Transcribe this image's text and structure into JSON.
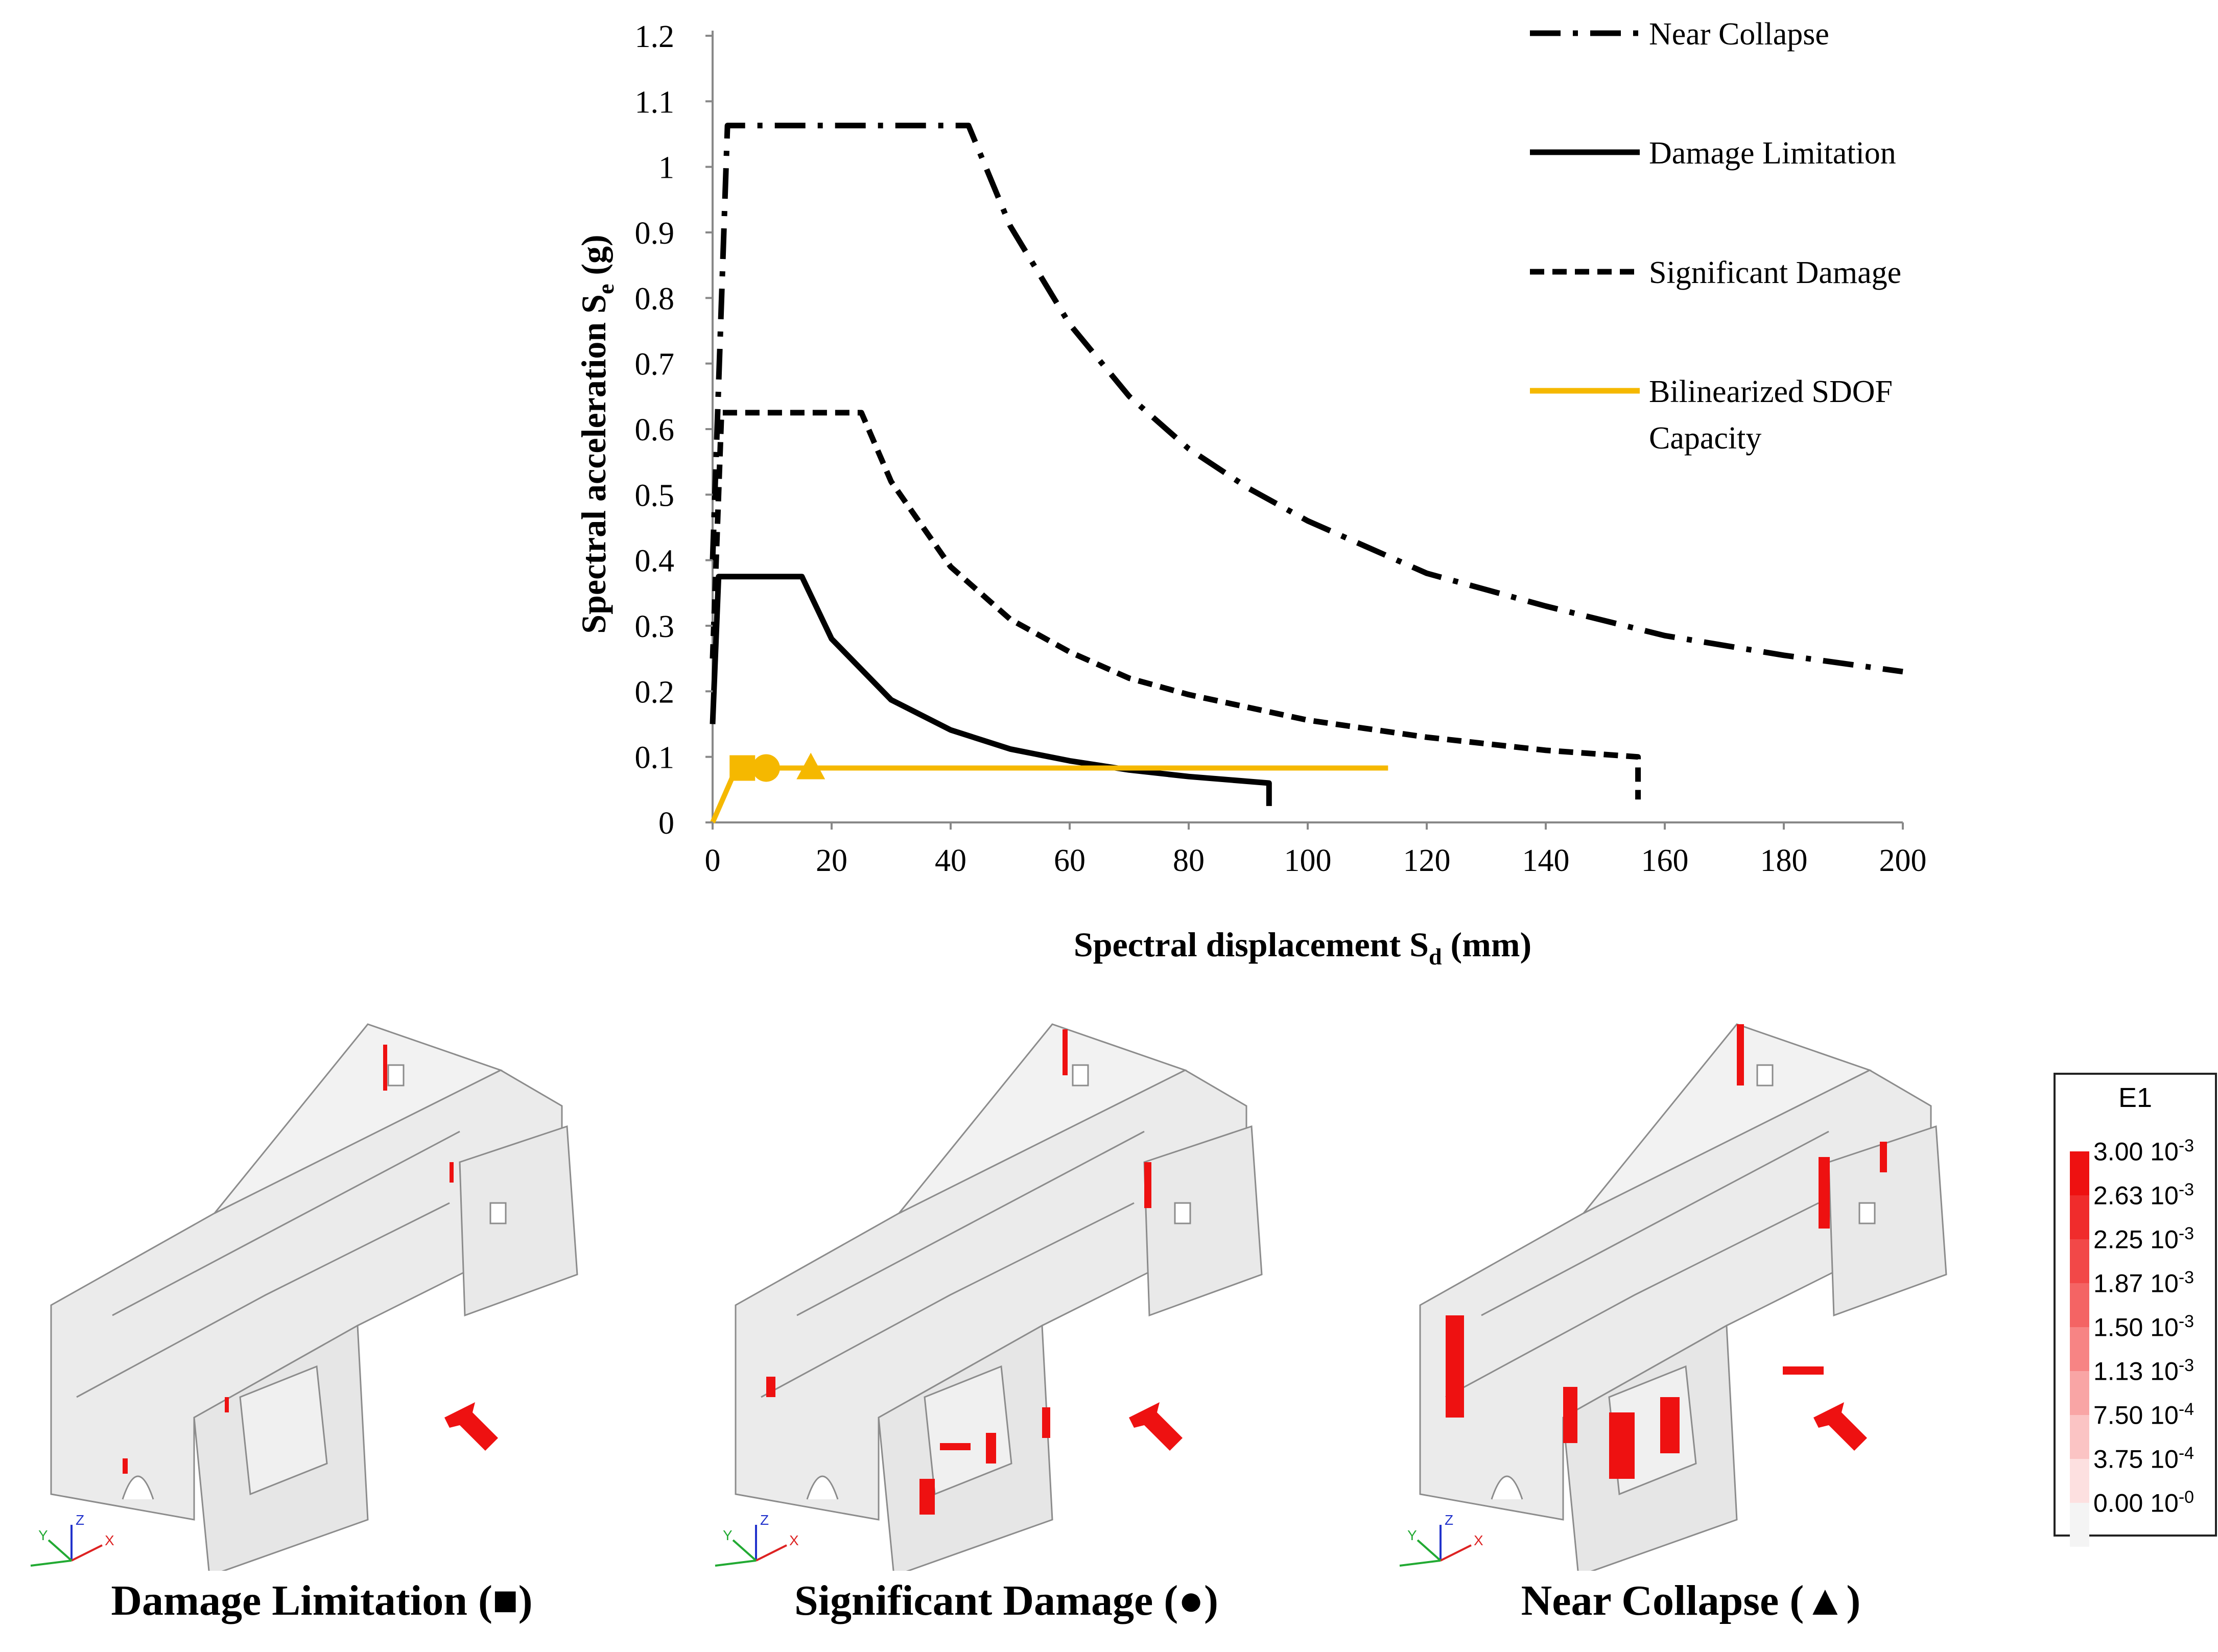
{
  "chart_data": {
    "type": "line",
    "xlabel": "Spectral displacement S",
    "xlabel_sub": "d",
    "xlabel_unit": " (mm)",
    "ylabel": "Spectral acceleration S",
    "ylabel_sub": "e",
    "ylabel_unit": " (g)",
    "xlim": [
      0,
      200
    ],
    "ylim": [
      0,
      1.2
    ],
    "x_ticks": [
      "0",
      "20",
      "40",
      "60",
      "80",
      "100",
      "120",
      "140",
      "160",
      "180",
      "200"
    ],
    "y_ticks": [
      "0",
      "0.1",
      "0.2",
      "0.3",
      "0.4",
      "0.5",
      "0.6",
      "0.7",
      "0.8",
      "0.9",
      "1",
      "1.1",
      "1.2"
    ],
    "series": [
      {
        "name": "Near Collapse",
        "style": "dashdot",
        "color": "#000000",
        "plateau": 1.063,
        "x": [
          0,
          2.5,
          43,
          50,
          60,
          70,
          80,
          90,
          100,
          120,
          140,
          160,
          180,
          200
        ],
        "y": [
          0.4,
          1.063,
          1.063,
          0.91,
          0.76,
          0.65,
          0.57,
          0.51,
          0.46,
          0.38,
          0.33,
          0.285,
          0.255,
          0.23
        ]
      },
      {
        "name": "Damage Limitation",
        "style": "solid",
        "color": "#000000",
        "plateau": 0.375,
        "x": [
          0,
          1,
          15,
          20,
          30,
          40,
          50,
          60,
          70,
          80,
          93.5,
          93.5
        ],
        "y": [
          0.15,
          0.375,
          0.375,
          0.28,
          0.187,
          0.141,
          0.112,
          0.094,
          0.08,
          0.07,
          0.06,
          0.025
        ]
      },
      {
        "name": "Significant Damage",
        "style": "dashed",
        "color": "#000000",
        "plateau": 0.625,
        "x": [
          0,
          1.5,
          25,
          30,
          40,
          50,
          60,
          70,
          80,
          100,
          120,
          140,
          155.5,
          155.5
        ],
        "y": [
          0.25,
          0.625,
          0.625,
          0.52,
          0.39,
          0.31,
          0.26,
          0.22,
          0.195,
          0.156,
          0.13,
          0.11,
          0.1,
          0.035
        ]
      },
      {
        "name": "Bilinearized SDOF Capacity",
        "name_line2": "Capacity",
        "style": "solid",
        "color": "#F5B800",
        "x": [
          0,
          4,
          113.5
        ],
        "y": [
          0,
          0.083,
          0.083
        ]
      }
    ],
    "markers": [
      {
        "shape": "square",
        "x": 5,
        "y": 0.083,
        "label": "Damage Limitation"
      },
      {
        "shape": "circle",
        "x": 9,
        "y": 0.083,
        "label": "Significant Damage"
      },
      {
        "shape": "triangle",
        "x": 16.5,
        "y": 0.083,
        "label": "Near Collapse"
      }
    ]
  },
  "legend": {
    "near_collapse": "Near Collapse",
    "damage_limitation": "Damage Limitation",
    "significant_damage": "Significant Damage",
    "bilinearized_line1": "Bilinearized SDOF",
    "bilinearized_line2": "Capacity"
  },
  "panels": [
    {
      "caption": "Damage Limitation (■)",
      "intensity": 0.25
    },
    {
      "caption": "Significant Damage (●)",
      "intensity": 0.55
    },
    {
      "caption": "Near Collapse (▲)",
      "intensity": 1.0
    }
  ],
  "colorbar": {
    "title": "E1",
    "entries": [
      {
        "mantissa": "3.00 10",
        "exp": "-3",
        "color": "#ee1111"
      },
      {
        "mantissa": "2.63 10",
        "exp": "-3",
        "color": "#f02c2c"
      },
      {
        "mantissa": "2.25 10",
        "exp": "-3",
        "color": "#f24848"
      },
      {
        "mantissa": "1.87 10",
        "exp": "-3",
        "color": "#f46464"
      },
      {
        "mantissa": "1.50 10",
        "exp": "-3",
        "color": "#f78484"
      },
      {
        "mantissa": "1.13 10",
        "exp": "-3",
        "color": "#f9a5a5"
      },
      {
        "mantissa": "7.50 10",
        "exp": "-4",
        "color": "#fbc4c4"
      },
      {
        "mantissa": "3.75 10",
        "exp": "-4",
        "color": "#fde0e0"
      },
      {
        "mantissa": "0.00 10",
        "exp": "-0",
        "color": "#f4f4f4"
      }
    ]
  },
  "axis_triad": {
    "x": "X",
    "y": "Y",
    "z": "Z"
  }
}
